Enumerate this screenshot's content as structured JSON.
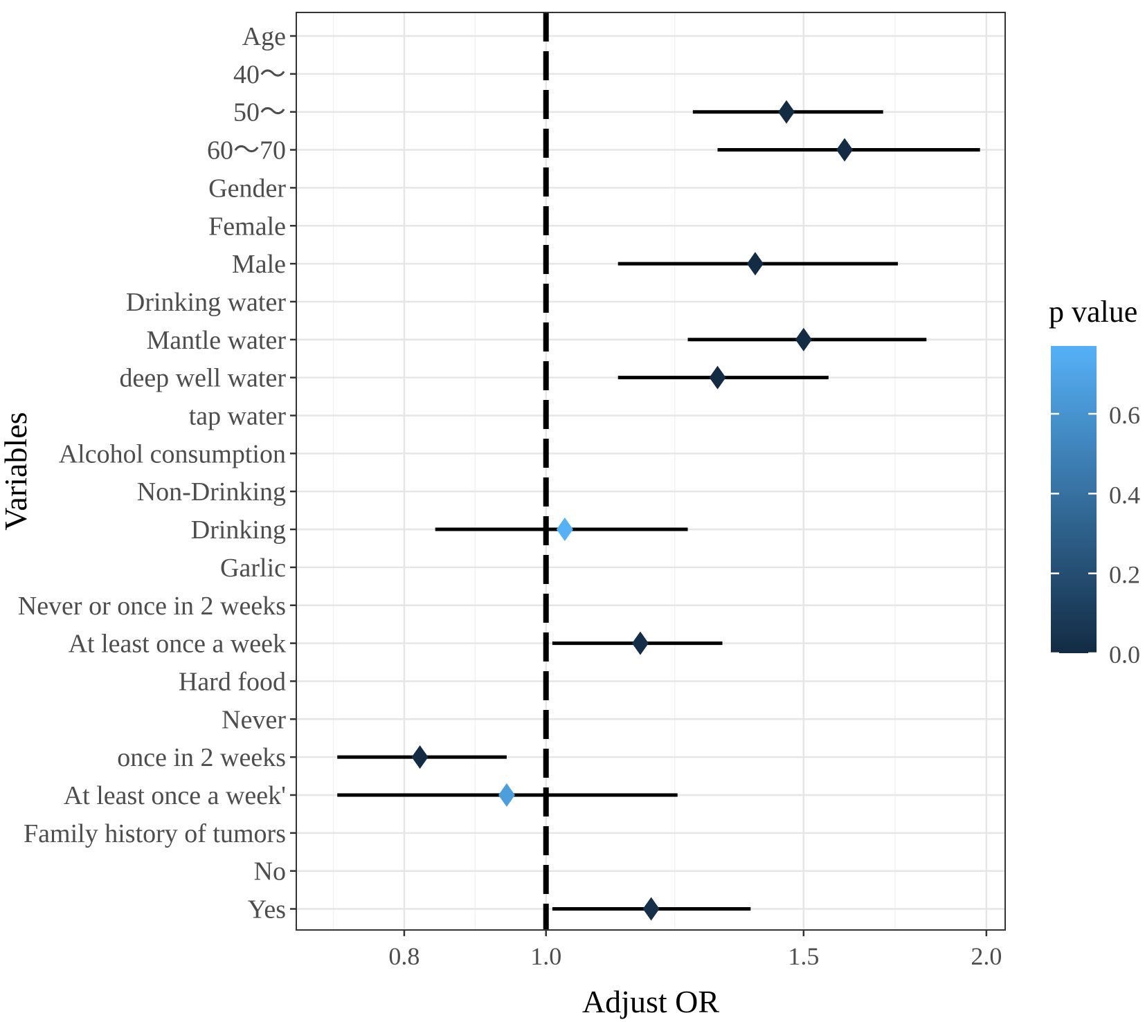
{
  "chart_data": {
    "type": "forest",
    "x_scale": "log",
    "xlabel": "Adjust OR",
    "ylabel": "Variables",
    "xlim": [
      0.675,
      2.06
    ],
    "x_ticks": [
      0.8,
      1.0,
      1.5,
      2.0
    ],
    "x_tick_labels": [
      "0.8",
      "1.0",
      "1.5",
      "2.0"
    ],
    "reference_line": 1.0,
    "legend": {
      "title": "p value",
      "type": "colorbar",
      "range": [
        0.0,
        0.77
      ],
      "ticks": [
        0.0,
        0.2,
        0.4,
        0.6
      ],
      "tick_labels": [
        "0.0",
        "0.2",
        "0.4",
        "0.6"
      ],
      "color_low": "#132B43",
      "color_high": "#56B1F7"
    },
    "rows": [
      {
        "label": "Age",
        "or": null,
        "lower": null,
        "upper": null,
        "p": null
      },
      {
        "label": "40～",
        "or": 1.0,
        "lower": null,
        "upper": null,
        "p": null
      },
      {
        "label": "50～",
        "or": 1.46,
        "lower": 1.26,
        "upper": 1.7,
        "p": 0.0
      },
      {
        "label": "60～70",
        "or": 1.6,
        "lower": 1.31,
        "upper": 1.98,
        "p": 0.0
      },
      {
        "label": "Gender",
        "or": null,
        "lower": null,
        "upper": null,
        "p": null
      },
      {
        "label": "Female",
        "or": 1.0,
        "lower": null,
        "upper": null,
        "p": null
      },
      {
        "label": "Male",
        "or": 1.39,
        "lower": 1.12,
        "upper": 1.74,
        "p": 0.0
      },
      {
        "label": "Drinking water",
        "or": null,
        "lower": null,
        "upper": null,
        "p": null
      },
      {
        "label": "Mantle water",
        "or": 1.5,
        "lower": 1.25,
        "upper": 1.82,
        "p": 0.0
      },
      {
        "label": "deep well water",
        "or": 1.31,
        "lower": 1.12,
        "upper": 1.56,
        "p": 0.0
      },
      {
        "label": "tap water",
        "or": 1.0,
        "lower": null,
        "upper": null,
        "p": null
      },
      {
        "label": "Alcohol consumption",
        "or": null,
        "lower": null,
        "upper": null,
        "p": null
      },
      {
        "label": "Non-Drinking",
        "or": 1.0,
        "lower": null,
        "upper": null,
        "p": null
      },
      {
        "label": "Drinking",
        "or": 1.03,
        "lower": 0.84,
        "upper": 1.25,
        "p": 0.77
      },
      {
        "label": "Garlic",
        "or": null,
        "lower": null,
        "upper": null,
        "p": null
      },
      {
        "label": "Never or once in 2 weeks",
        "or": 1.0,
        "lower": null,
        "upper": null,
        "p": null
      },
      {
        "label": "At least once a week",
        "or": 1.16,
        "lower": 1.01,
        "upper": 1.32,
        "p": 0.02
      },
      {
        "label": "Hard food",
        "or": null,
        "lower": null,
        "upper": null,
        "p": null
      },
      {
        "label": "Never",
        "or": 1.0,
        "lower": null,
        "upper": null,
        "p": null
      },
      {
        "label": "once in 2 weeks",
        "or": 0.82,
        "lower": 0.72,
        "upper": 0.94,
        "p": 0.005
      },
      {
        "label": "At least once a week'",
        "or": 0.94,
        "lower": 0.72,
        "upper": 1.23,
        "p": 0.66
      },
      {
        "label": "Family history of tumors",
        "or": null,
        "lower": null,
        "upper": null,
        "p": null
      },
      {
        "label": "No",
        "or": 1.0,
        "lower": null,
        "upper": null,
        "p": null
      },
      {
        "label": "Yes",
        "or": 1.18,
        "lower": 1.01,
        "upper": 1.38,
        "p": 0.03
      }
    ]
  }
}
